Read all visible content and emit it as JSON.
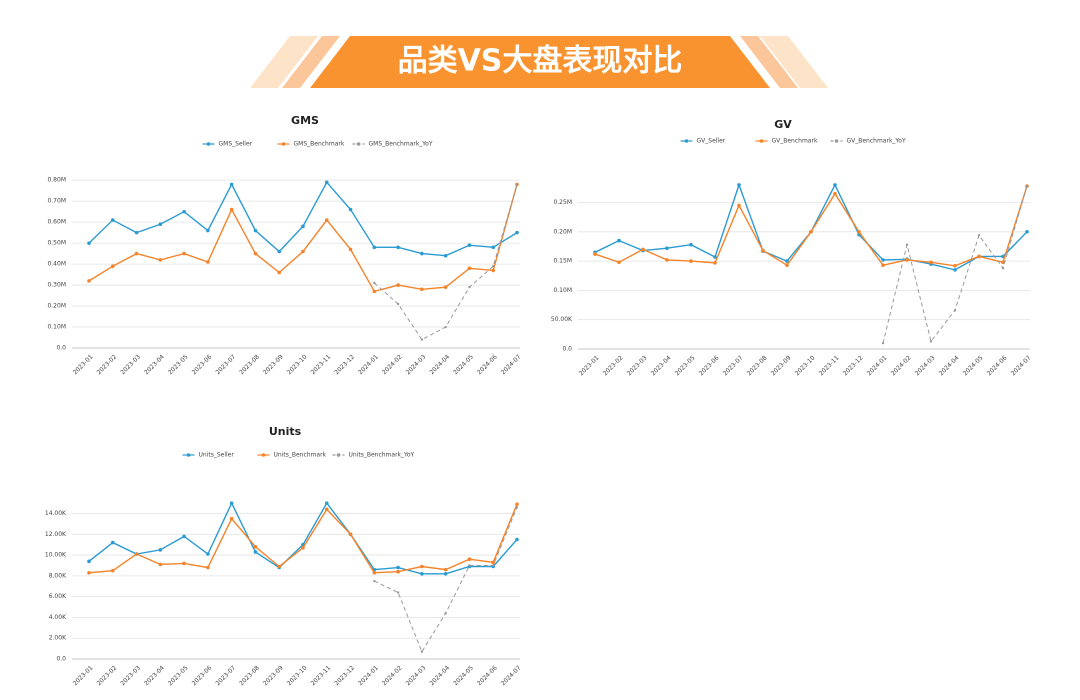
{
  "header": {
    "title": "品类VS大盘表现对比"
  },
  "chart_data": [
    {
      "type": "line",
      "title": "GMS",
      "categories": [
        "2023-01",
        "2023-02",
        "2023-03",
        "2023-04",
        "2023-05",
        "2023-06",
        "2023-07",
        "2023-08",
        "2023-09",
        "2023-10",
        "2023-11",
        "2023-12",
        "2024-01",
        "2024-02",
        "2024-03",
        "2024-04",
        "2024-05",
        "2024-06",
        "2024-07"
      ],
      "series": [
        {
          "name": "GMS_Seller",
          "color": "#2b9bd3",
          "values": [
            0.5,
            0.61,
            0.55,
            0.59,
            0.65,
            0.56,
            0.78,
            0.56,
            0.46,
            0.58,
            0.79,
            0.66,
            0.48,
            0.48,
            0.45,
            0.44,
            0.49,
            0.48,
            0.55
          ]
        },
        {
          "name": "GMS_Benchmark",
          "color": "#f5832a",
          "values": [
            0.32,
            0.39,
            0.45,
            0.42,
            0.45,
            0.41,
            0.66,
            0.45,
            0.36,
            0.46,
            0.61,
            0.47,
            0.27,
            0.3,
            0.28,
            0.29,
            0.38,
            0.37,
            0.78
          ]
        },
        {
          "name": "GMS_Benchmark_YoY",
          "color": "#999999",
          "dashed": true,
          "values": [
            null,
            null,
            null,
            null,
            null,
            null,
            null,
            null,
            null,
            null,
            null,
            null,
            0.31,
            0.21,
            0.04,
            0.1,
            0.29,
            0.39,
            0.78
          ]
        }
      ],
      "ylim": [
        0,
        0.82
      ],
      "yticks": [
        {
          "value": 0,
          "label": "0.0"
        },
        {
          "value": 0.1,
          "label": "0.10M"
        },
        {
          "value": 0.2,
          "label": "0.20M"
        },
        {
          "value": 0.3,
          "label": "0.30M"
        },
        {
          "value": 0.4,
          "label": "0.40M"
        },
        {
          "value": 0.5,
          "label": "0.50M"
        },
        {
          "value": 0.6,
          "label": "0.60M"
        },
        {
          "value": 0.7,
          "label": "0.70M"
        },
        {
          "value": 0.8,
          "label": "0.80M"
        }
      ],
      "grid": true
    },
    {
      "type": "line",
      "title": "GV",
      "categories": [
        "2023-01",
        "2023-02",
        "2023-03",
        "2023-04",
        "2023-05",
        "2023-06",
        "2023-07",
        "2023-08",
        "2023-09",
        "2023-10",
        "2023-11",
        "2023-12",
        "2024-01",
        "2024-02",
        "2024-03",
        "2024-04",
        "2024-05",
        "2024-06",
        "2024-07"
      ],
      "series": [
        {
          "name": "GV_Seller",
          "color": "#2b9bd3",
          "values": [
            0.165,
            0.185,
            0.168,
            0.172,
            0.178,
            0.157,
            0.28,
            0.167,
            0.15,
            0.2,
            0.28,
            0.195,
            0.152,
            0.153,
            0.145,
            0.135,
            0.158,
            0.158,
            0.2
          ]
        },
        {
          "name": "GV_Benchmark",
          "color": "#f5832a",
          "values": [
            0.162,
            0.148,
            0.17,
            0.152,
            0.15,
            0.147,
            0.245,
            0.168,
            0.143,
            0.2,
            0.265,
            0.2,
            0.143,
            0.152,
            0.148,
            0.142,
            0.158,
            0.148,
            0.278
          ]
        },
        {
          "name": "GV_Benchmark_YoY",
          "color": "#999999",
          "dashed": true,
          "values": [
            null,
            null,
            null,
            null,
            null,
            null,
            null,
            null,
            null,
            null,
            null,
            null,
            0.01,
            0.178,
            0.013,
            0.066,
            0.194,
            0.138,
            0.278
          ]
        }
      ],
      "ylim": [
        0,
        0.285
      ],
      "yticks": [
        {
          "value": 0,
          "label": "0.0"
        },
        {
          "value": 0.05,
          "label": "50.00K"
        },
        {
          "value": 0.1,
          "label": "0.10M"
        },
        {
          "value": 0.15,
          "label": "0.15M"
        },
        {
          "value": 0.2,
          "label": "0.20M"
        },
        {
          "value": 0.25,
          "label": "0.25M"
        }
      ],
      "grid": true
    },
    {
      "type": "line",
      "title": "Units",
      "categories": [
        "2023-01",
        "2023-02",
        "2023-03",
        "2023-04",
        "2023-05",
        "2023-06",
        "2023-07",
        "2023-08",
        "2023-09",
        "2023-10",
        "2023-11",
        "2023-12",
        "2024-01",
        "2024-02",
        "2024-03",
        "2024-04",
        "2024-05",
        "2024-06",
        "2024-07"
      ],
      "series": [
        {
          "name": "Units_Seller",
          "color": "#2b9bd3",
          "values": [
            9.4,
            11.2,
            10.1,
            10.5,
            11.8,
            10.1,
            15.0,
            10.3,
            8.8,
            11.0,
            15.0,
            12.0,
            8.6,
            8.8,
            8.2,
            8.2,
            8.9,
            8.9,
            11.5
          ]
        },
        {
          "name": "Units_Benchmark",
          "color": "#f5832a",
          "values": [
            8.3,
            8.5,
            10.1,
            9.1,
            9.2,
            8.8,
            13.5,
            10.8,
            8.9,
            10.7,
            14.4,
            12.0,
            8.3,
            8.4,
            8.9,
            8.6,
            9.6,
            9.3,
            14.9
          ]
        },
        {
          "name": "Units_Benchmark_YoY",
          "color": "#999999",
          "dashed": true,
          "values": [
            null,
            null,
            null,
            null,
            null,
            null,
            null,
            null,
            null,
            null,
            null,
            null,
            7.5,
            6.4,
            0.7,
            4.4,
            9.0,
            9.0,
            14.6
          ]
        }
      ],
      "ylim": [
        0,
        15.3
      ],
      "yticks": [
        {
          "value": 0,
          "label": "0.0"
        },
        {
          "value": 2,
          "label": "2.00K"
        },
        {
          "value": 4,
          "label": "4.00K"
        },
        {
          "value": 6,
          "label": "6.00K"
        },
        {
          "value": 8,
          "label": "8.00K"
        },
        {
          "value": 10,
          "label": "10.00K"
        },
        {
          "value": 12,
          "label": "12.00K"
        },
        {
          "value": 14,
          "label": "14.00K"
        }
      ],
      "grid": true
    }
  ]
}
